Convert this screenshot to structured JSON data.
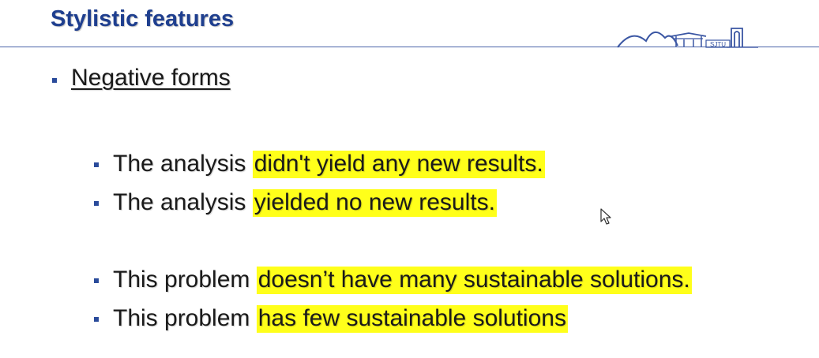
{
  "slide": {
    "title": "Stylistic features",
    "heading": "Negative forms",
    "items": [
      {
        "plain": "The analysis ",
        "highlight": "didn't yield any new results."
      },
      {
        "plain": "The analysis ",
        "highlight": "yielded no new results."
      },
      {
        "plain": "This problem ",
        "highlight": "doesn’t have many sustainable solutions."
      },
      {
        "plain": "This problem ",
        "highlight": "has few sustainable solutions"
      }
    ],
    "logo_text": "SJTU"
  },
  "colors": {
    "title": "#1f3f8f",
    "bullet": "#2a4b9b",
    "highlight": "#ffff1a",
    "rule": "#4a63a8"
  }
}
